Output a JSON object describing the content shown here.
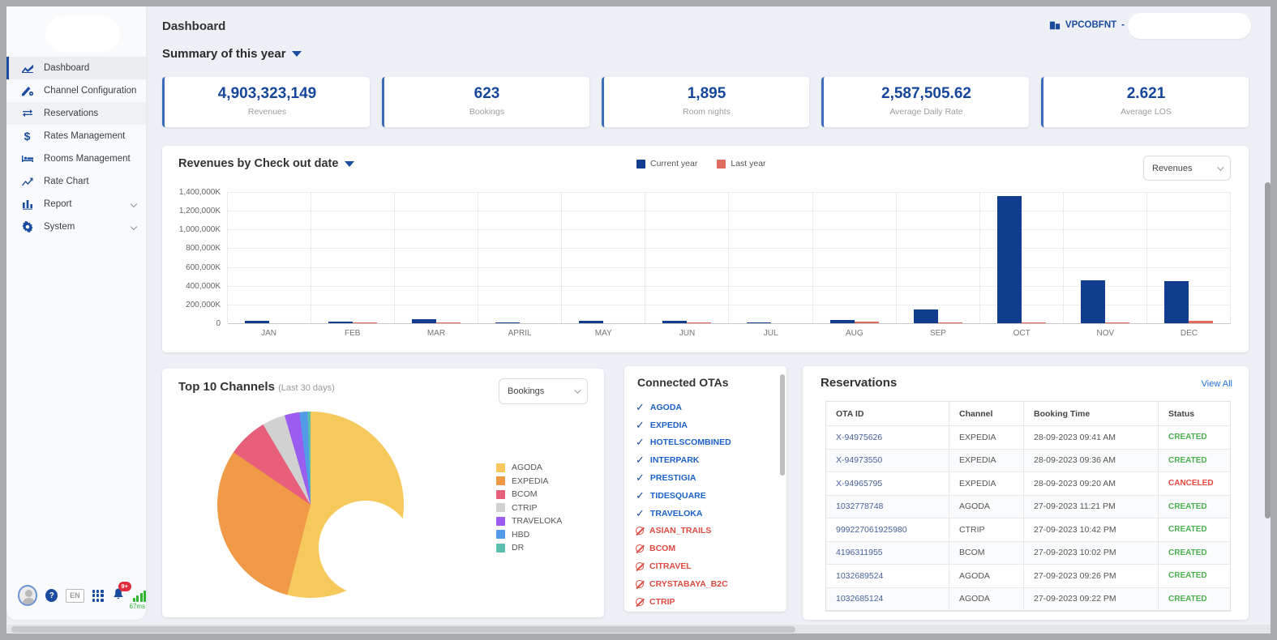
{
  "app": {
    "property_code": "VPCOBFNT",
    "separator": "-"
  },
  "header": {
    "page_title": "Dashboard",
    "summary_label": "Summary of this year"
  },
  "sidebar": {
    "items": [
      {
        "label": "Dashboard",
        "icon": "dashboard-icon",
        "active": true,
        "expandable": false
      },
      {
        "label": "Channel Configuration",
        "icon": "channel-configuration-icon",
        "active": false,
        "expandable": false
      },
      {
        "label": "Reservations",
        "icon": "reservations-icon",
        "active": false,
        "highlight": true,
        "expandable": false
      },
      {
        "label": "Rates Management",
        "icon": "rates-management-icon",
        "active": false,
        "expandable": false
      },
      {
        "label": "Rooms Management",
        "icon": "rooms-management-icon",
        "active": false,
        "expandable": false
      },
      {
        "label": "Rate Chart",
        "icon": "rate-chart-icon",
        "active": false,
        "expandable": false
      },
      {
        "label": "Report",
        "icon": "report-icon",
        "active": false,
        "expandable": true
      },
      {
        "label": "System",
        "icon": "system-icon",
        "active": false,
        "expandable": true
      }
    ],
    "footer": {
      "language": "EN",
      "notifications_badge": "9+",
      "latency": "67ms"
    }
  },
  "kpis": [
    {
      "value": "4,903,323,149",
      "label": "Revenues"
    },
    {
      "value": "623",
      "label": "Bookings"
    },
    {
      "value": "1,895",
      "label": "Room nights"
    },
    {
      "value": "2,587,505.62",
      "label": "Average Daily Rate"
    },
    {
      "value": "2.621",
      "label": "Average LOS"
    }
  ],
  "revenue_chart": {
    "title": "Revenues by Check out date",
    "metric_select": "Revenues",
    "chart_data": {
      "type": "bar",
      "categories": [
        "JAN",
        "FEB",
        "MAR",
        "APRIL",
        "MAY",
        "JUN",
        "JUL",
        "AUG",
        "SEP",
        "OCT",
        "NOV",
        "DEC"
      ],
      "series": [
        {
          "name": "Current year",
          "color": "#113d8f",
          "values": [
            28000,
            20000,
            40000,
            2000,
            30000,
            26000,
            12000,
            38000,
            150000,
            1360000,
            460000,
            450000
          ]
        },
        {
          "name": "Last year",
          "color": "#e06c60",
          "values": [
            0,
            5000,
            4000,
            0,
            0,
            5000,
            0,
            14000,
            12000,
            4000,
            13000,
            25000
          ]
        }
      ],
      "y_ticks": [
        "1,400,000K",
        "1,200,000K",
        "1,000,000K",
        "800,000K",
        "600,000K",
        "400,000K",
        "200,000K",
        "0"
      ],
      "ylim": [
        0,
        1400000
      ],
      "unit": "K",
      "legend_position": "top"
    }
  },
  "top_channels": {
    "title": "Top 10 Channels",
    "subtitle": "(Last 30 days)",
    "metric_select": "Bookings",
    "chart_data": {
      "type": "pie",
      "labels": [
        "AGODA",
        "EXPEDIA",
        "BCOM",
        "CTRIP",
        "TRAVELOKA",
        "HBD",
        "DR"
      ],
      "values_pct": [
        54,
        30.5,
        7,
        4,
        2.6,
        1.4,
        0.5
      ],
      "colors": [
        "#f6c95c",
        "#f09a47",
        "#e85f7b",
        "#d1d1d1",
        "#9b5df0",
        "#539ae8",
        "#5cbfae"
      ],
      "hole": 0.5,
      "legend_position": "right"
    }
  },
  "connected_otas": {
    "title": "Connected OTAs",
    "connected": [
      "AGODA",
      "EXPEDIA",
      "HOTELSCOMBINED",
      "INTERPARK",
      "PRESTIGIA",
      "TIDESQUARE",
      "TRAVELOKA"
    ],
    "disconnected": [
      "ASIAN_TRAILS",
      "BCOM",
      "CITRAVEL",
      "CRYSTABAYA_B2C",
      "CTRIP"
    ]
  },
  "reservations": {
    "title": "Reservations",
    "view_all_label": "View All",
    "columns": [
      "OTA ID",
      "Channel",
      "Booking Time",
      "Status"
    ],
    "rows": [
      [
        "X-94975626",
        "EXPEDIA",
        "28-09-2023 09:41 AM",
        "CREATED"
      ],
      [
        "X-94973550",
        "EXPEDIA",
        "28-09-2023 09:36 AM",
        "CREATED"
      ],
      [
        "X-94965795",
        "EXPEDIA",
        "28-09-2023 09:20 AM",
        "CANCELED"
      ],
      [
        "1032778748",
        "AGODA",
        "27-09-2023 11:21 PM",
        "CREATED"
      ],
      [
        "999227061925980",
        "CTRIP",
        "27-09-2023 10:42 PM",
        "CREATED"
      ],
      [
        "4196311955",
        "BCOM",
        "27-09-2023 10:02 PM",
        "CREATED"
      ],
      [
        "1032689524",
        "AGODA",
        "27-09-2023 09:26 PM",
        "CREATED"
      ],
      [
        "1032685124",
        "AGODA",
        "27-09-2023 09:22 PM",
        "CREATED"
      ]
    ],
    "status_colors": {
      "CREATED": "#4caf50",
      "CANCELED": "#e8473f"
    }
  },
  "colors": {
    "primary": "#16479c",
    "accent_bar": "#3c6db8",
    "link": "#1f6fd6"
  }
}
